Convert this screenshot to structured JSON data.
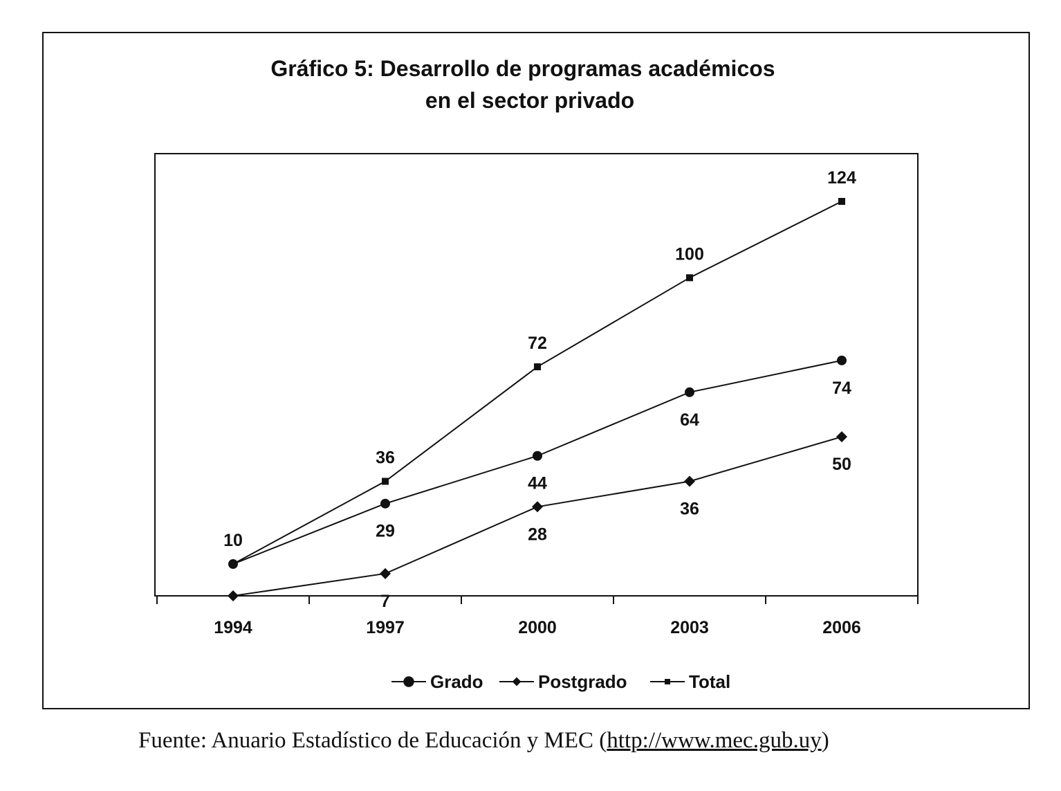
{
  "chart_data": {
    "type": "line",
    "title_line1": "Gráfico 5: Desarrollo de programas académicos",
    "title_line2": "en el sector privado",
    "categories": [
      "1994",
      "1997",
      "2000",
      "2003",
      "2006"
    ],
    "xlabel": "",
    "ylabel": "",
    "ylim": [
      0,
      124
    ],
    "grid": false,
    "legend_position": "bottom",
    "series": [
      {
        "name": "Grado",
        "marker": "circle",
        "values": [
          10,
          29,
          44,
          64,
          74
        ],
        "labels": [
          null,
          "29",
          "44",
          "64",
          "74"
        ],
        "label_pos": "below"
      },
      {
        "name": "Postgrado",
        "marker": "diamond",
        "values": [
          0,
          7,
          28,
          36,
          50
        ],
        "labels": [
          null,
          "7",
          "28",
          "36",
          "50"
        ],
        "label_pos": "below"
      },
      {
        "name": "Total",
        "marker": "square",
        "values": [
          10,
          36,
          72,
          100,
          124
        ],
        "labels": [
          "10",
          "36",
          "72",
          "100",
          "124"
        ],
        "label_pos": "above"
      }
    ]
  },
  "source": {
    "prefix": "Fuente: Anuario Estadístico de Educación y MEC (",
    "url": "http://www.mec.gub.uy",
    "suffix": ")"
  }
}
